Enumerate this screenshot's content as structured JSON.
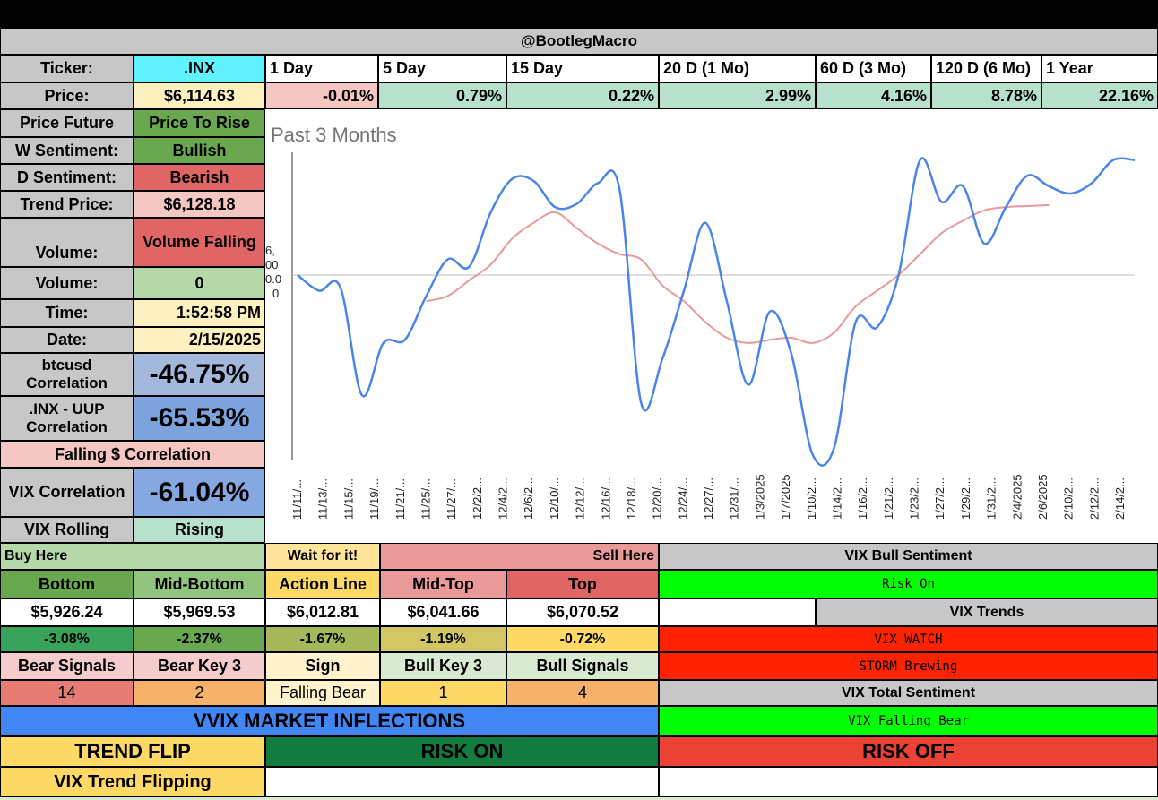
{
  "header": {
    "title": "@BootlegMacro"
  },
  "ticker": {
    "label": "Ticker:",
    "value": ".INX"
  },
  "periods": [
    "1 Day",
    "5 Day",
    "15 Day",
    "20 D (1 Mo)",
    "60 D (3 Mo)",
    "120 D (6 Mo)",
    "1 Year"
  ],
  "price": {
    "label": "Price:",
    "value": "$6,114.63",
    "changes": [
      "-0.01%",
      "0.79%",
      "0.22%",
      "2.99%",
      "4.16%",
      "8.78%",
      "22.16%"
    ]
  },
  "stats": {
    "price_future": {
      "label": "Price Future",
      "value": "Price To Rise"
    },
    "w_sentiment": {
      "label": "W Sentiment:",
      "value": "Bullish"
    },
    "d_sentiment": {
      "label": "D Sentiment:",
      "value": "Bearish"
    },
    "trend_price": {
      "label": "Trend Price:",
      "value": "$6,128.18"
    },
    "volume_trend": {
      "label": "Volume:",
      "value": "Volume Falling"
    },
    "volume": {
      "label": "Volume:",
      "value": "0"
    },
    "time": {
      "label": "Time:",
      "value": "1:52:58 PM"
    },
    "date": {
      "label": "Date:",
      "value": "2/15/2025"
    },
    "btc_corr": {
      "label": "btcusd Correlation",
      "value": "-46.75%"
    },
    "uup_corr": {
      "label": ".INX - UUP Correlation",
      "value": "-65.53%"
    },
    "falling_corr": {
      "label": "Falling $ Correlation"
    },
    "vix_corr": {
      "label": "VIX Correlation",
      "value": "-61.04%"
    },
    "vix_rolling": {
      "label": "VIX Rolling",
      "value": "Rising"
    }
  },
  "zones": {
    "buy_here": "Buy Here",
    "wait": "Wait for it!",
    "sell_here": "Sell Here",
    "headers": [
      "Bottom",
      "Mid-Bottom",
      "Action Line",
      "Mid-Top",
      "Top"
    ],
    "prices": [
      "$5,926.24",
      "$5,969.53",
      "$6,012.81",
      "$6,041.66",
      "$6,070.52"
    ],
    "pcts": [
      "-3.08%",
      "-2.37%",
      "-1.67%",
      "-1.19%",
      "-0.72%"
    ]
  },
  "signals": {
    "headers": [
      "Bear Signals",
      "Bear Key 3",
      "Sign",
      "Bull Key 3",
      "Bull Signals"
    ],
    "values": [
      "14",
      "2",
      "Falling Bear",
      "1",
      "4"
    ]
  },
  "vix": {
    "bull_sentiment_label": "VIX Bull Sentiment",
    "bull_sentiment_value": "Risk On",
    "trends_label": "VIX Trends",
    "watch": "VIX WATCH",
    "storm": "STORM Brewing",
    "total_label": "VIX Total Sentiment",
    "total_value": "VIX Falling Bear"
  },
  "bottom": {
    "vvix": "VVIX MARKET INFLECTIONS",
    "trend_flip": "TREND FLIP",
    "risk_on": "RISK ON",
    "risk_off": "RISK OFF",
    "vix_trend_flipping": "VIX Trend Flipping"
  },
  "colors": {
    "price_line": "#4a86e8",
    "trend_line": "#ea9999",
    "baseline": "#bdbdbd",
    "risk_on_green": "#00ff00",
    "alert_red": "#ff2200",
    "dark_green": "#137b3f"
  },
  "chart_data": {
    "type": "line",
    "title": "Past 3 Months",
    "y_tick_fragments": [
      "6,",
      "00",
      "0.0",
      "0"
    ],
    "x_labels": [
      "11/11/...",
      "11/13/...",
      "11/15/...",
      "11/19/...",
      "11/21/...",
      "11/25/...",
      "11/27/...",
      "12/2/2...",
      "12/4/2...",
      "12/6/2...",
      "12/10/...",
      "12/12/...",
      "12/16/...",
      "12/18/...",
      "12/20/...",
      "12/24/...",
      "12/27/...",
      "12/31/...",
      "1/3/2025",
      "1/7/2025",
      "1/10/2...",
      "1/14/2...",
      "1/16/2...",
      "1/21/2...",
      "1/23/2...",
      "1/27/2...",
      "1/29/2...",
      "1/31/2...",
      "2/4/2025",
      "2/6/2025",
      "2/10/2...",
      "2/12/2...",
      "2/14/2..."
    ],
    "ylim": [
      5830,
      6130
    ],
    "baseline": 6010,
    "series": [
      {
        "role": "price",
        "values": [
          6010,
          5995,
          5998,
          5895,
          5945,
          5948,
          5990,
          6025,
          6018,
          6070,
          6102,
          6100,
          6075,
          6078,
          6098,
          6092,
          5888,
          5930,
          5995,
          6060,
          5985,
          5905,
          5975,
          5935,
          5838,
          5845,
          5965,
          5960,
          6010,
          6120,
          6080,
          6095,
          6040,
          6075,
          6105,
          6095,
          6088,
          6098,
          6120,
          6120
        ]
      },
      {
        "role": "trend",
        "x_start_index": 6,
        "values": [
          5985,
          5990,
          6005,
          6020,
          6045,
          6060,
          6070,
          6055,
          6040,
          6030,
          6025,
          6000,
          5985,
          5965,
          5950,
          5945,
          5948,
          5950,
          5945,
          5955,
          5980,
          5995,
          6010,
          6030,
          6050,
          6062,
          6072,
          6075,
          6076,
          6077
        ]
      }
    ]
  }
}
